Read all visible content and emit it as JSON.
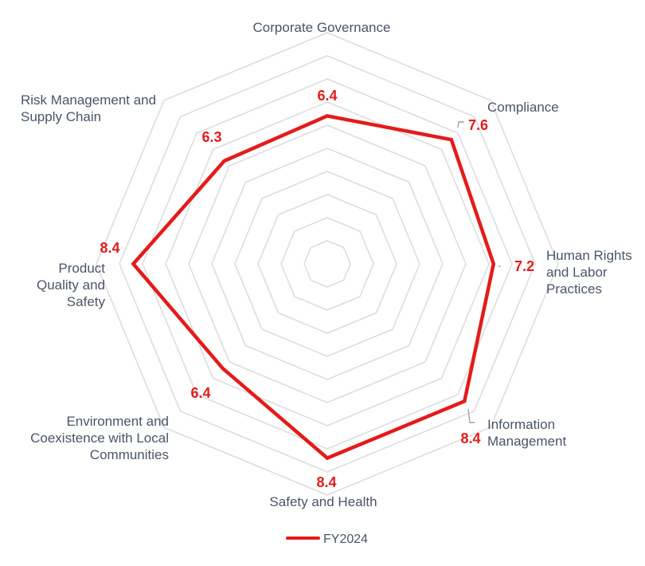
{
  "chart_data": {
    "type": "radar",
    "categories": [
      "Corporate Governance",
      "Compliance",
      "Human Rights and Labor Practices",
      "Information Management",
      "Safety and Health",
      "Environment and Coexistence with Local Communities",
      "Product Quality and Safety",
      "Risk Management and Supply Chain"
    ],
    "series": [
      {
        "name": "FY2024",
        "values": [
          6.4,
          7.6,
          7.2,
          8.4,
          8.4,
          6.4,
          8.4,
          6.3
        ],
        "color": "#e41b1b"
      }
    ],
    "value_labels": [
      "6.4",
      "7.6",
      "7.2",
      "8.4",
      "8.4",
      "6.4",
      "8.4",
      "6.3"
    ],
    "rlim": [
      0,
      10
    ],
    "grid": true,
    "legend": "bottom"
  },
  "colors": {
    "grid": "#dddddd",
    "text": "#4a5568",
    "series": "#e41b1b"
  }
}
